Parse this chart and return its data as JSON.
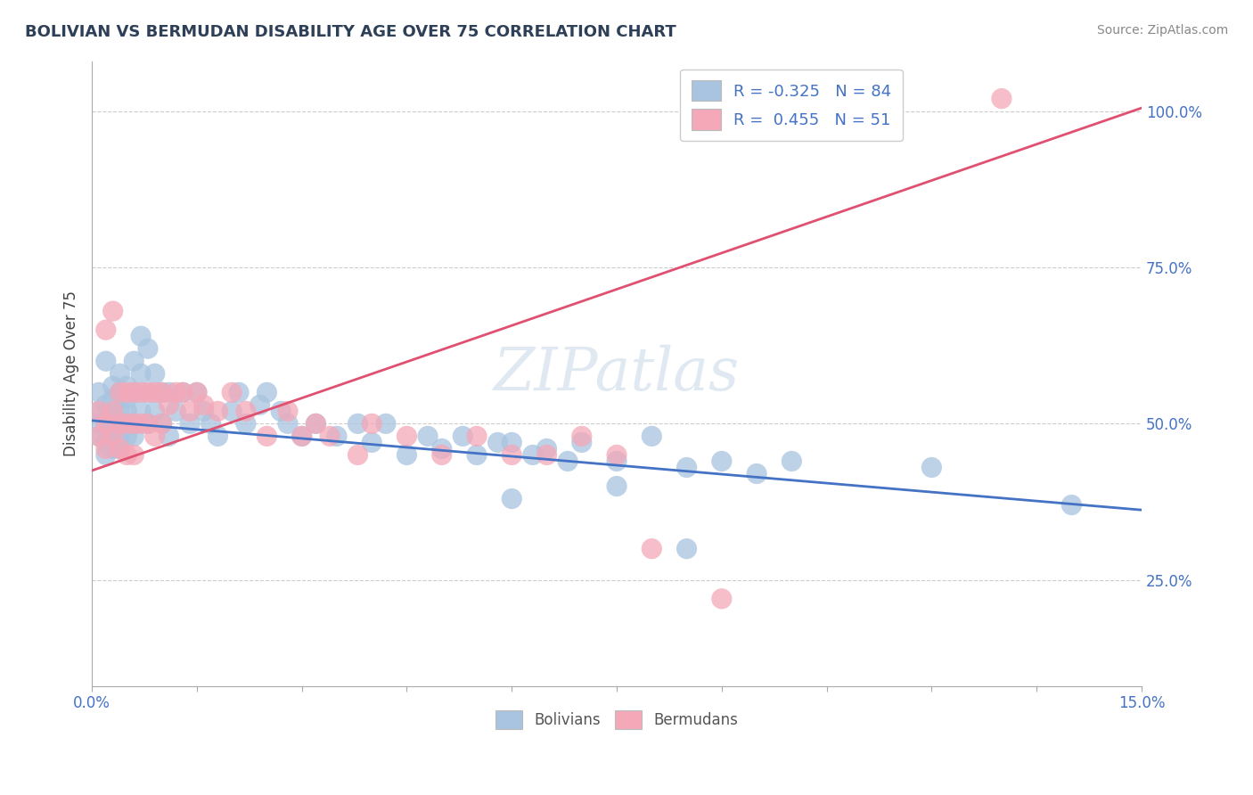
{
  "title": "BOLIVIAN VS BERMUDAN DISABILITY AGE OVER 75 CORRELATION CHART",
  "source_text": "Source: ZipAtlas.com",
  "ylabel": "Disability Age Over 75",
  "xlim": [
    0.0,
    0.15
  ],
  "ylim": [
    0.08,
    1.08
  ],
  "ytick_positions": [
    0.25,
    0.5,
    0.75,
    1.0
  ],
  "ytick_labels": [
    "25.0%",
    "50.0%",
    "75.0%",
    "100.0%"
  ],
  "xtick_vals": [
    0.0,
    0.015,
    0.03,
    0.045,
    0.06,
    0.075,
    0.09,
    0.105,
    0.12,
    0.135,
    0.15
  ],
  "xtick_show": [
    "0.0%",
    "",
    "",
    "",
    "",
    "",
    "",
    "",
    "",
    "",
    "15.0%"
  ],
  "grid_color": "#cccccc",
  "background_color": "#ffffff",
  "bolivian_color": "#a8c4e0",
  "bermudan_color": "#f4a8b8",
  "bolivian_line_color": "#4472c4",
  "bermudan_line_color": "#e05070",
  "tick_label_color": "#4472c4",
  "legend_R_bolivian": "-0.325",
  "legend_N_bolivian": "84",
  "legend_R_bermudan": "0.455",
  "legend_N_bermudan": "51",
  "watermark": "ZIPatlas",
  "boli_line_x": [
    0.0,
    0.15
  ],
  "boli_line_y": [
    0.505,
    0.362
  ],
  "berm_line_x": [
    0.0,
    0.15
  ],
  "berm_line_y": [
    0.425,
    1.005
  ],
  "bolivian_x": [
    0.001,
    0.001,
    0.001,
    0.001,
    0.002,
    0.002,
    0.002,
    0.002,
    0.002,
    0.003,
    0.003,
    0.003,
    0.003,
    0.003,
    0.003,
    0.004,
    0.004,
    0.004,
    0.004,
    0.004,
    0.004,
    0.005,
    0.005,
    0.005,
    0.005,
    0.005,
    0.006,
    0.006,
    0.006,
    0.006,
    0.007,
    0.007,
    0.007,
    0.008,
    0.008,
    0.008,
    0.009,
    0.009,
    0.01,
    0.01,
    0.011,
    0.011,
    0.012,
    0.013,
    0.014,
    0.015,
    0.016,
    0.017,
    0.018,
    0.02,
    0.021,
    0.022,
    0.024,
    0.025,
    0.027,
    0.028,
    0.03,
    0.032,
    0.035,
    0.038,
    0.04,
    0.042,
    0.045,
    0.048,
    0.05,
    0.053,
    0.055,
    0.058,
    0.06,
    0.063,
    0.065,
    0.068,
    0.07,
    0.075,
    0.08,
    0.085,
    0.09,
    0.095,
    0.1,
    0.12,
    0.06,
    0.075,
    0.085,
    0.14
  ],
  "bolivian_y": [
    0.5,
    0.52,
    0.48,
    0.55,
    0.53,
    0.5,
    0.47,
    0.6,
    0.45,
    0.56,
    0.52,
    0.48,
    0.5,
    0.46,
    0.54,
    0.58,
    0.52,
    0.48,
    0.5,
    0.55,
    0.46,
    0.54,
    0.5,
    0.48,
    0.56,
    0.52,
    0.6,
    0.55,
    0.5,
    0.48,
    0.64,
    0.58,
    0.52,
    0.62,
    0.55,
    0.5,
    0.58,
    0.52,
    0.55,
    0.5,
    0.55,
    0.48,
    0.52,
    0.55,
    0.5,
    0.55,
    0.52,
    0.5,
    0.48,
    0.52,
    0.55,
    0.5,
    0.53,
    0.55,
    0.52,
    0.5,
    0.48,
    0.5,
    0.48,
    0.5,
    0.47,
    0.5,
    0.45,
    0.48,
    0.46,
    0.48,
    0.45,
    0.47,
    0.47,
    0.45,
    0.46,
    0.44,
    0.47,
    0.44,
    0.48,
    0.43,
    0.44,
    0.42,
    0.44,
    0.43,
    0.38,
    0.4,
    0.3,
    0.37
  ],
  "bermudan_x": [
    0.001,
    0.001,
    0.002,
    0.002,
    0.002,
    0.003,
    0.003,
    0.003,
    0.004,
    0.004,
    0.004,
    0.005,
    0.005,
    0.005,
    0.006,
    0.006,
    0.006,
    0.007,
    0.007,
    0.008,
    0.008,
    0.009,
    0.009,
    0.01,
    0.01,
    0.011,
    0.012,
    0.013,
    0.014,
    0.015,
    0.016,
    0.018,
    0.02,
    0.022,
    0.025,
    0.028,
    0.03,
    0.032,
    0.034,
    0.038,
    0.04,
    0.045,
    0.05,
    0.055,
    0.06,
    0.065,
    0.07,
    0.075,
    0.08,
    0.09,
    0.13
  ],
  "bermudan_y": [
    0.52,
    0.48,
    0.65,
    0.5,
    0.46,
    0.68,
    0.52,
    0.48,
    0.55,
    0.5,
    0.46,
    0.55,
    0.5,
    0.45,
    0.55,
    0.5,
    0.45,
    0.55,
    0.5,
    0.55,
    0.5,
    0.55,
    0.48,
    0.55,
    0.5,
    0.53,
    0.55,
    0.55,
    0.52,
    0.55,
    0.53,
    0.52,
    0.55,
    0.52,
    0.48,
    0.52,
    0.48,
    0.5,
    0.48,
    0.45,
    0.5,
    0.48,
    0.45,
    0.48,
    0.45,
    0.45,
    0.48,
    0.45,
    0.3,
    0.22,
    1.02
  ]
}
